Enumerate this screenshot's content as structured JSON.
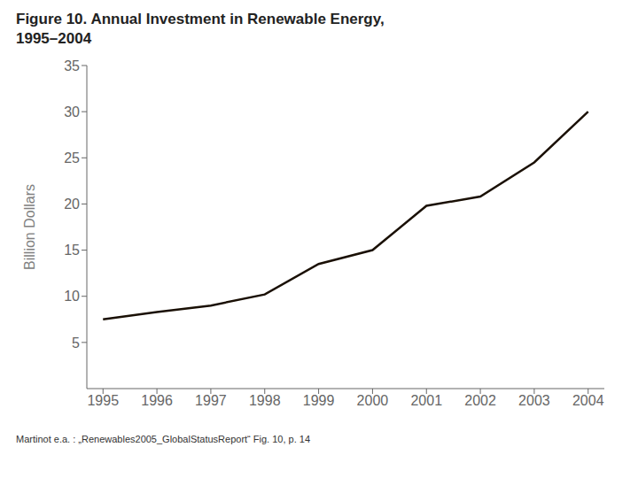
{
  "chart_data": {
    "type": "line",
    "title": "Figure 10. Annual Investment in Renewable Energy,",
    "subtitle": "1995–2004",
    "y_label": "Billion Dollars",
    "caption": "Martinot e.a. : „Renewables2005_GlobalStatusReport“ Fig. 10, p. 14",
    "x": [
      1995,
      1996,
      1997,
      1998,
      1999,
      2000,
      2001,
      2002,
      2003,
      2004
    ],
    "values": [
      7.5,
      8.3,
      9.0,
      10.2,
      13.5,
      15.0,
      19.8,
      20.8,
      24.5,
      30.0
    ],
    "color": "#1A1005",
    "xlim": [
      1994.7,
      2004.3
    ],
    "xticks": [
      1995,
      1996,
      1997,
      1998,
      1999,
      2000,
      2001,
      2002,
      2003,
      2004
    ],
    "ylim": [
      0,
      35
    ],
    "yticks": [
      5,
      10,
      15,
      20,
      25,
      30,
      35
    ],
    "grid": false
  }
}
